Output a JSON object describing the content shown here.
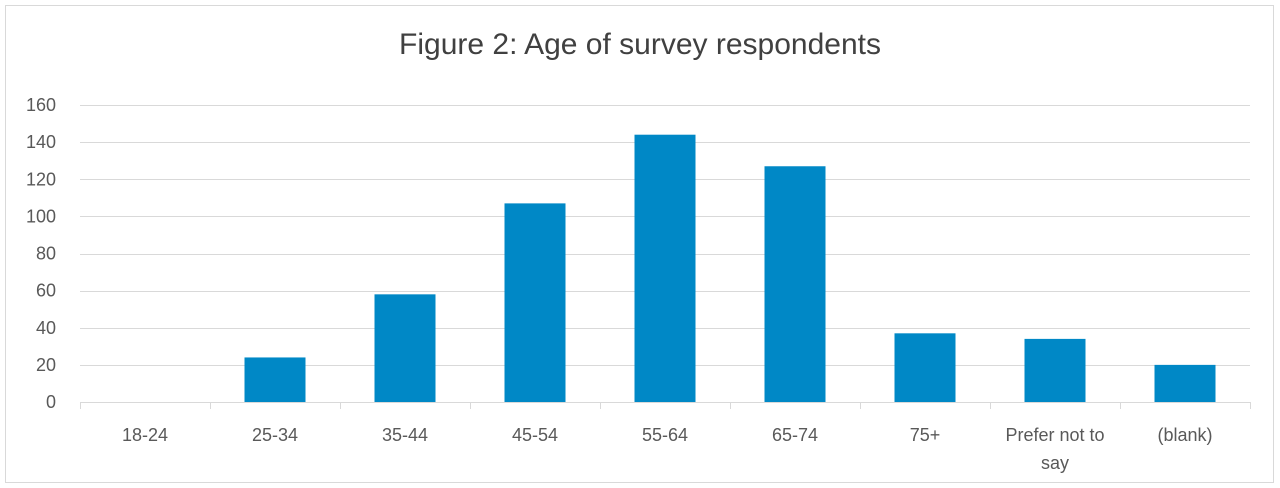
{
  "chart_data": {
    "type": "bar",
    "title": "Figure 2: Age of survey respondents",
    "categories": [
      "18-24",
      "25-34",
      "35-44",
      "45-54",
      "55-64",
      "65-74",
      "75+",
      "Prefer not to say",
      "(blank)"
    ],
    "category_label_lines": [
      [
        "18-24"
      ],
      [
        "25-34"
      ],
      [
        "35-44"
      ],
      [
        "45-54"
      ],
      [
        "55-64"
      ],
      [
        "65-74"
      ],
      [
        "75+"
      ],
      [
        "Prefer not to",
        "say"
      ],
      [
        "(blank)"
      ]
    ],
    "values": [
      0,
      24,
      58,
      107,
      144,
      127,
      37,
      34,
      20
    ],
    "ylim": [
      0,
      160
    ],
    "yticks": [
      0,
      20,
      40,
      60,
      80,
      100,
      120,
      140,
      160
    ],
    "xlabel": "",
    "ylabel": "",
    "grid": true,
    "legend": "none",
    "bar_color": "#0088c6",
    "grid_color": "#d9d9d9"
  }
}
